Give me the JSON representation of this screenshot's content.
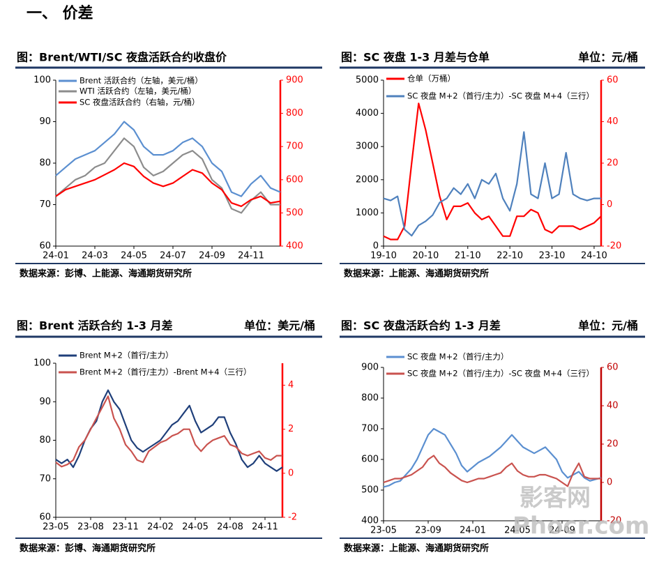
{
  "heading": "一、 价差",
  "watermark": [
    "影客网",
    "Phocr.com"
  ],
  "chart_data": [
    {
      "type": "line",
      "title": "图：Brent/WTI/SC 夜盘活跃合约收盘价",
      "source": "数据来源：彭博、上能源、海通期货研究所",
      "categories": [
        "24-01",
        null,
        null,
        null,
        "24-03",
        null,
        null,
        null,
        "24-05",
        null,
        null,
        null,
        "24-07",
        null,
        null,
        null,
        "24-09",
        null,
        null,
        null,
        "24-11",
        null,
        null,
        null
      ],
      "series": [
        {
          "name": "Brent 活跃合约（左轴，美元/桶）",
          "color": "#5b8fd0",
          "values": [
            77,
            79,
            81,
            82,
            83,
            85,
            87,
            90,
            88,
            84,
            82,
            82,
            83,
            85,
            86,
            84,
            80,
            78,
            73,
            72,
            75,
            77,
            74,
            73
          ]
        },
        {
          "name": "WTI 活跃合约（左轴，美元/桶）",
          "color": "#8c8c8c",
          "values": [
            72,
            74,
            76,
            77,
            79,
            80,
            83,
            86,
            84,
            79,
            77,
            78,
            80,
            82,
            83,
            81,
            76,
            74,
            69,
            68,
            71,
            73,
            70,
            70
          ]
        },
        {
          "name": "SC 夜盘活跃合约（右轴，元/桶）",
          "color": "#ff0000",
          "axis": "y2",
          "values": [
            550,
            570,
            580,
            590,
            600,
            615,
            630,
            650,
            640,
            610,
            590,
            580,
            590,
            610,
            630,
            620,
            590,
            570,
            530,
            520,
            540,
            550,
            530,
            535
          ]
        }
      ],
      "ylim": [
        60,
        100
      ],
      "yticks": [
        60,
        70,
        80,
        90,
        100
      ],
      "y2lim": [
        400,
        900
      ],
      "y2ticks": [
        400,
        500,
        600,
        700,
        800,
        900
      ],
      "y2_axis_color": "#ff0000"
    },
    {
      "type": "line",
      "title": "图：SC 夜盘 1-3 月差与仓单",
      "subtitle": "单位：元/桶",
      "source": "数据来源：上能源、海通期货研究所",
      "categories": [
        "19-10",
        null,
        null,
        null,
        null,
        null,
        "20-10",
        null,
        null,
        null,
        null,
        null,
        "21-10",
        null,
        null,
        null,
        null,
        null,
        "22-10",
        null,
        null,
        null,
        null,
        null,
        "23-10",
        null,
        null,
        null,
        null,
        null,
        "24-10",
        null
      ],
      "series": [
        {
          "name": "仓单（万桶）",
          "color": "#ff0000",
          "values": [
            300,
            200,
            200,
            600,
            2500,
            4300,
            3500,
            2500,
            1500,
            800,
            1200,
            1200,
            1300,
            1000,
            800,
            900,
            600,
            300,
            300,
            900,
            900,
            1100,
            1000,
            500,
            400,
            600,
            600,
            600,
            500,
            600,
            700,
            900
          ]
        },
        {
          "name": "SC 夜盘 M+2（首行/主力）-SC 夜盘 M+4（三行）",
          "color": "#4f81bd",
          "axis": "y2",
          "values": [
            3,
            2,
            4,
            -12,
            -15,
            -10,
            -8,
            -5,
            1,
            3,
            8,
            5,
            10,
            3,
            12,
            10,
            15,
            3,
            -3,
            10,
            35,
            5,
            3,
            20,
            3,
            5,
            25,
            5,
            3,
            2,
            3,
            3
          ]
        }
      ],
      "ylim": [
        0,
        5000
      ],
      "yticks": [
        0,
        1000,
        2000,
        3000,
        4000,
        5000
      ],
      "y2lim": [
        -20,
        60
      ],
      "y2ticks": [
        -20,
        0,
        20,
        40,
        60
      ],
      "y2_axis_color": "#ff0000"
    },
    {
      "type": "line",
      "title": "图：Brent 活跃合约 1-3 月差",
      "subtitle": "单位：美元/桶",
      "source": "数据来源：彭博、海通期货研究所",
      "categories": [
        "23-05",
        null,
        null,
        null,
        null,
        null,
        "23-08",
        null,
        null,
        null,
        null,
        null,
        "23-11",
        null,
        null,
        null,
        null,
        null,
        "24-02",
        null,
        null,
        null,
        null,
        null,
        "24-05",
        null,
        null,
        null,
        null,
        null,
        "24-08",
        null,
        null,
        null,
        null,
        null,
        "24-11",
        null,
        null,
        null
      ],
      "series": [
        {
          "name": "Brent M+2（首行/主力）",
          "color": "#1f3f7a",
          "values": [
            75,
            74,
            75,
            73,
            76,
            80,
            83,
            85,
            90,
            93,
            90,
            88,
            84,
            80,
            78,
            77,
            78,
            79,
            80,
            82,
            84,
            85,
            87,
            89,
            85,
            82,
            83,
            84,
            86,
            86,
            82,
            79,
            75,
            73,
            74,
            76,
            74,
            73,
            72,
            73
          ]
        },
        {
          "name": "Brent M+2（首行/主力）-Brent M+4（三行）",
          "color": "#c9524e",
          "axis": "y2",
          "values": [
            0.5,
            0.3,
            0.4,
            0.6,
            1.2,
            1.5,
            2,
            2.5,
            3,
            3.5,
            2.5,
            2,
            1.3,
            1,
            0.6,
            0.5,
            1,
            1.2,
            1.4,
            1.5,
            1.7,
            1.8,
            2,
            2,
            1.3,
            1,
            1.3,
            1.5,
            1.6,
            1.7,
            1.3,
            1.2,
            0.9,
            0.8,
            0.9,
            1,
            0.7,
            0.6,
            0.8,
            0.8
          ]
        }
      ],
      "ylim": [
        60,
        100
      ],
      "yticks": [
        60,
        70,
        80,
        90,
        100
      ],
      "y2lim": [
        -2,
        5
      ],
      "y2ticks": [
        -2,
        0,
        2,
        4
      ],
      "y2_axis_color": "#ff0000"
    },
    {
      "type": "line",
      "title": "图：SC 夜盘活跃合约 1-3 月差",
      "subtitle": "单位：元/桶",
      "source": "数据来源：上能源、海通期货研究所",
      "categories": [
        "23-05",
        null,
        null,
        null,
        null,
        null,
        null,
        null,
        "23-09",
        null,
        null,
        null,
        null,
        null,
        null,
        null,
        "24-01",
        null,
        null,
        null,
        null,
        null,
        null,
        null,
        "24-05",
        null,
        null,
        null,
        null,
        null,
        null,
        null,
        "24-09",
        null,
        null,
        null,
        null,
        null,
        null,
        null
      ],
      "series": [
        {
          "name": "SC 夜盘 M+2（首行/主力）",
          "color": "#5b8fd0",
          "values": [
            510,
            515,
            525,
            530,
            550,
            570,
            600,
            640,
            680,
            700,
            690,
            680,
            650,
            620,
            580,
            560,
            575,
            590,
            600,
            610,
            625,
            640,
            660,
            680,
            660,
            640,
            630,
            620,
            630,
            640,
            620,
            600,
            560,
            540,
            550,
            560,
            540,
            530,
            535,
            540
          ]
        },
        {
          "name": "SC 夜盘 M+2（首行/主力）-SC 夜盘 M+4（三行）",
          "color": "#c9524e",
          "axis": "y2",
          "values": [
            0,
            1,
            2,
            2,
            3,
            4,
            6,
            8,
            12,
            14,
            10,
            8,
            5,
            3,
            1,
            0,
            1,
            2,
            2,
            3,
            4,
            5,
            8,
            10,
            6,
            4,
            3,
            3,
            4,
            4,
            3,
            2,
            0,
            -2,
            5,
            10,
            3,
            2,
            2,
            2
          ]
        }
      ],
      "ylim": [
        400,
        900
      ],
      "yticks": [
        400,
        500,
        600,
        700,
        800,
        900
      ],
      "y2lim": [
        -20,
        60
      ],
      "y2ticks": [
        -20,
        0,
        20,
        40,
        60
      ],
      "y2_axis_color": "#c00000"
    }
  ]
}
